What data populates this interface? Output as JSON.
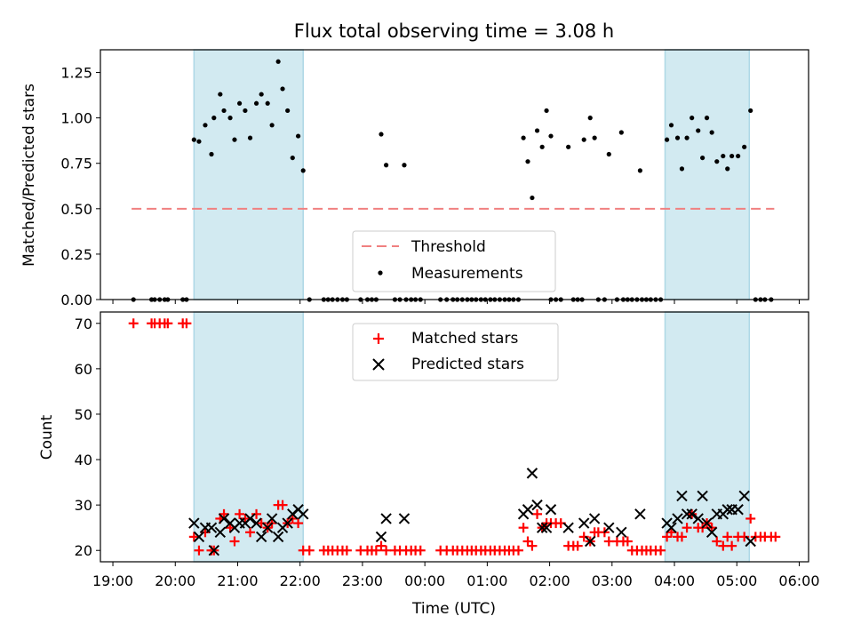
{
  "chart_data": {
    "type": "scatter",
    "title": "Flux total observing time = 3.08 h",
    "xlabel": "Time (UTC)",
    "x_ticks": [
      "19:00",
      "20:00",
      "21:00",
      "22:00",
      "23:00",
      "00:00",
      "01:00",
      "02:00",
      "03:00",
      "04:00",
      "05:00",
      "06:00"
    ],
    "x_range_hours": [
      18.8,
      30.15
    ],
    "shaded_intervals_hours": [
      [
        20.3,
        22.05
      ],
      [
        27.85,
        29.2
      ]
    ],
    "colors": {
      "shade": "#add8e6",
      "threshold": "#f08080",
      "matched": "#ff0000",
      "predicted": "#000000",
      "measure": "#000000"
    },
    "top": {
      "ylabel": "Matched/Predicted stars",
      "ylim": [
        0,
        1.375
      ],
      "y_ticks": [
        "0.00",
        "0.25",
        "0.50",
        "0.75",
        "1.00",
        "1.25"
      ],
      "threshold": {
        "value": 0.5,
        "x_range_hours": [
          19.3,
          29.6
        ]
      },
      "legend": {
        "position": "lower-center",
        "entries": [
          "Threshold",
          "Measurements"
        ]
      },
      "measurements": [
        [
          19.33,
          0
        ],
        [
          19.62,
          0
        ],
        [
          19.67,
          0
        ],
        [
          19.75,
          0
        ],
        [
          19.83,
          0
        ],
        [
          19.88,
          0
        ],
        [
          20.12,
          0
        ],
        [
          20.18,
          0
        ],
        [
          20.3,
          0.88
        ],
        [
          20.38,
          0.87
        ],
        [
          20.48,
          0.96
        ],
        [
          20.58,
          0.8
        ],
        [
          20.62,
          1.0
        ],
        [
          20.72,
          1.13
        ],
        [
          20.78,
          1.04
        ],
        [
          20.88,
          1.0
        ],
        [
          20.95,
          0.88
        ],
        [
          21.03,
          1.08
        ],
        [
          21.12,
          1.04
        ],
        [
          21.2,
          0.89
        ],
        [
          21.3,
          1.08
        ],
        [
          21.38,
          1.13
        ],
        [
          21.48,
          1.08
        ],
        [
          21.55,
          0.96
        ],
        [
          21.65,
          1.31
        ],
        [
          21.72,
          1.16
        ],
        [
          21.8,
          1.04
        ],
        [
          21.88,
          0.78
        ],
        [
          21.97,
          0.9
        ],
        [
          22.05,
          0.71
        ],
        [
          22.15,
          0
        ],
        [
          22.38,
          0
        ],
        [
          22.45,
          0
        ],
        [
          22.52,
          0
        ],
        [
          22.6,
          0
        ],
        [
          22.68,
          0
        ],
        [
          22.75,
          0
        ],
        [
          22.97,
          0
        ],
        [
          23.08,
          0
        ],
        [
          23.15,
          0
        ],
        [
          23.22,
          0
        ],
        [
          23.3,
          0.91
        ],
        [
          23.38,
          0.74
        ],
        [
          23.67,
          0.74
        ],
        [
          23.52,
          0
        ],
        [
          23.6,
          0
        ],
        [
          23.7,
          0
        ],
        [
          23.78,
          0
        ],
        [
          23.85,
          0
        ],
        [
          23.93,
          0
        ],
        [
          24.25,
          0
        ],
        [
          24.35,
          0
        ],
        [
          24.45,
          0
        ],
        [
          24.52,
          0
        ],
        [
          24.6,
          0
        ],
        [
          24.68,
          0
        ],
        [
          24.75,
          0
        ],
        [
          24.82,
          0
        ],
        [
          24.9,
          0
        ],
        [
          24.97,
          0
        ],
        [
          25.05,
          0
        ],
        [
          25.12,
          0
        ],
        [
          25.2,
          0
        ],
        [
          25.28,
          0
        ],
        [
          25.35,
          0
        ],
        [
          25.42,
          0
        ],
        [
          25.5,
          0
        ],
        [
          25.58,
          0.89
        ],
        [
          25.65,
          0.76
        ],
        [
          25.72,
          0.56
        ],
        [
          25.8,
          0.93
        ],
        [
          25.88,
          0.84
        ],
        [
          25.95,
          1.04
        ],
        [
          26.02,
          0.9
        ],
        [
          26.02,
          0
        ],
        [
          26.1,
          0
        ],
        [
          26.18,
          0
        ],
        [
          26.38,
          0
        ],
        [
          26.45,
          0
        ],
        [
          26.52,
          0
        ],
        [
          26.78,
          0
        ],
        [
          26.88,
          0
        ],
        [
          27.08,
          0
        ],
        [
          27.18,
          0
        ],
        [
          27.25,
          0
        ],
        [
          27.32,
          0
        ],
        [
          27.4,
          0
        ],
        [
          27.48,
          0
        ],
        [
          27.55,
          0
        ],
        [
          27.62,
          0
        ],
        [
          27.7,
          0
        ],
        [
          27.78,
          0
        ],
        [
          26.3,
          0.84
        ],
        [
          26.55,
          0.88
        ],
        [
          26.65,
          1.0
        ],
        [
          26.72,
          0.89
        ],
        [
          26.95,
          0.8
        ],
        [
          27.15,
          0.92
        ],
        [
          27.45,
          0.71
        ],
        [
          27.88,
          0.88
        ],
        [
          27.95,
          0.96
        ],
        [
          28.05,
          0.89
        ],
        [
          28.12,
          0.72
        ],
        [
          28.2,
          0.89
        ],
        [
          28.28,
          1.0
        ],
        [
          28.38,
          0.93
        ],
        [
          28.45,
          0.78
        ],
        [
          28.52,
          1.0
        ],
        [
          28.6,
          0.92
        ],
        [
          28.68,
          0.76
        ],
        [
          28.78,
          0.79
        ],
        [
          28.85,
          0.72
        ],
        [
          28.92,
          0.79
        ],
        [
          29.02,
          0.79
        ],
        [
          29.12,
          0.84
        ],
        [
          29.22,
          1.04
        ],
        [
          29.3,
          0
        ],
        [
          29.38,
          0
        ],
        [
          29.45,
          0
        ],
        [
          29.55,
          0
        ]
      ]
    },
    "bottom": {
      "ylabel": "Count",
      "ylim": [
        17.5,
        72.5
      ],
      "y_ticks": [
        "20",
        "30",
        "40",
        "50",
        "60",
        "70"
      ],
      "legend": {
        "position": "top-center",
        "entries": [
          "Matched stars",
          "Predicted stars"
        ]
      },
      "matched": [
        [
          19.33,
          70
        ],
        [
          19.62,
          70
        ],
        [
          19.67,
          70
        ],
        [
          19.75,
          70
        ],
        [
          19.83,
          70
        ],
        [
          19.88,
          70
        ],
        [
          20.12,
          70
        ],
        [
          20.18,
          70
        ],
        [
          20.3,
          23
        ],
        [
          20.38,
          20
        ],
        [
          20.48,
          24
        ],
        [
          20.58,
          20
        ],
        [
          20.62,
          20
        ],
        [
          20.72,
          27
        ],
        [
          20.78,
          28
        ],
        [
          20.88,
          25
        ],
        [
          20.95,
          22
        ],
        [
          21.03,
          28
        ],
        [
          21.12,
          27
        ],
        [
          21.2,
          24
        ],
        [
          21.3,
          28
        ],
        [
          21.38,
          26
        ],
        [
          21.48,
          25
        ],
        [
          21.55,
          26
        ],
        [
          21.65,
          30
        ],
        [
          21.72,
          30
        ],
        [
          21.8,
          26
        ],
        [
          21.88,
          27
        ],
        [
          21.97,
          26
        ],
        [
          22.05,
          20
        ],
        [
          22.15,
          20
        ],
        [
          22.38,
          20
        ],
        [
          22.45,
          20
        ],
        [
          22.52,
          20
        ],
        [
          22.6,
          20
        ],
        [
          22.68,
          20
        ],
        [
          22.75,
          20
        ],
        [
          22.97,
          20
        ],
        [
          23.08,
          20
        ],
        [
          23.15,
          20
        ],
        [
          23.22,
          20
        ],
        [
          23.3,
          21
        ],
        [
          23.38,
          20
        ],
        [
          23.52,
          20
        ],
        [
          23.6,
          20
        ],
        [
          23.7,
          20
        ],
        [
          23.78,
          20
        ],
        [
          23.85,
          20
        ],
        [
          23.93,
          20
        ],
        [
          24.25,
          20
        ],
        [
          24.35,
          20
        ],
        [
          24.45,
          20
        ],
        [
          24.52,
          20
        ],
        [
          24.6,
          20
        ],
        [
          24.68,
          20
        ],
        [
          24.75,
          20
        ],
        [
          24.82,
          20
        ],
        [
          24.9,
          20
        ],
        [
          24.97,
          20
        ],
        [
          25.05,
          20
        ],
        [
          25.12,
          20
        ],
        [
          25.2,
          20
        ],
        [
          25.28,
          20
        ],
        [
          25.35,
          20
        ],
        [
          25.42,
          20
        ],
        [
          25.5,
          20
        ],
        [
          25.58,
          25
        ],
        [
          25.65,
          22
        ],
        [
          25.72,
          21
        ],
        [
          25.8,
          28
        ],
        [
          25.88,
          25
        ],
        [
          25.95,
          26
        ],
        [
          26.02,
          26
        ],
        [
          26.1,
          26
        ],
        [
          26.18,
          26
        ],
        [
          26.3,
          21
        ],
        [
          26.38,
          21
        ],
        [
          26.45,
          21
        ],
        [
          26.55,
          23
        ],
        [
          26.65,
          22
        ],
        [
          26.72,
          24
        ],
        [
          26.78,
          24
        ],
        [
          26.88,
          24
        ],
        [
          26.95,
          22
        ],
        [
          27.08,
          22
        ],
        [
          27.18,
          22
        ],
        [
          27.25,
          22
        ],
        [
          27.32,
          20
        ],
        [
          27.4,
          20
        ],
        [
          27.48,
          20
        ],
        [
          27.55,
          20
        ],
        [
          27.62,
          20
        ],
        [
          27.7,
          20
        ],
        [
          27.78,
          20
        ],
        [
          27.88,
          23
        ],
        [
          27.95,
          24
        ],
        [
          28.05,
          23
        ],
        [
          28.12,
          23
        ],
        [
          28.2,
          25
        ],
        [
          28.28,
          28
        ],
        [
          28.38,
          25
        ],
        [
          28.45,
          25
        ],
        [
          28.52,
          26
        ],
        [
          28.6,
          25
        ],
        [
          28.68,
          22
        ],
        [
          28.78,
          21
        ],
        [
          28.85,
          23
        ],
        [
          28.92,
          21
        ],
        [
          29.02,
          23
        ],
        [
          29.12,
          23
        ],
        [
          29.22,
          27
        ],
        [
          29.3,
          23
        ],
        [
          29.38,
          23
        ],
        [
          29.45,
          23
        ],
        [
          29.55,
          23
        ],
        [
          29.62,
          23
        ]
      ],
      "predicted": [
        [
          20.3,
          26
        ],
        [
          20.38,
          23
        ],
        [
          20.48,
          25
        ],
        [
          20.58,
          25
        ],
        [
          20.62,
          20
        ],
        [
          20.72,
          24
        ],
        [
          20.78,
          27
        ],
        [
          20.88,
          26
        ],
        [
          20.95,
          25
        ],
        [
          21.03,
          26
        ],
        [
          21.12,
          26
        ],
        [
          21.2,
          27
        ],
        [
          21.3,
          26
        ],
        [
          21.38,
          23
        ],
        [
          21.48,
          25
        ],
        [
          21.55,
          27
        ],
        [
          21.65,
          23
        ],
        [
          21.72,
          25
        ],
        [
          21.8,
          26
        ],
        [
          21.88,
          28
        ],
        [
          21.97,
          29
        ],
        [
          22.05,
          28
        ],
        [
          23.3,
          23
        ],
        [
          23.38,
          27
        ],
        [
          23.67,
          27
        ],
        [
          25.58,
          28
        ],
        [
          25.65,
          29
        ],
        [
          25.72,
          37
        ],
        [
          25.8,
          30
        ],
        [
          25.88,
          25
        ],
        [
          25.95,
          25
        ],
        [
          26.02,
          29
        ],
        [
          26.3,
          25
        ],
        [
          26.55,
          26
        ],
        [
          26.65,
          22
        ],
        [
          26.72,
          27
        ],
        [
          26.95,
          25
        ],
        [
          27.15,
          24
        ],
        [
          27.45,
          28
        ],
        [
          27.88,
          26
        ],
        [
          27.95,
          25
        ],
        [
          28.05,
          27
        ],
        [
          28.12,
          32
        ],
        [
          28.2,
          28
        ],
        [
          28.28,
          28
        ],
        [
          28.38,
          27
        ],
        [
          28.45,
          32
        ],
        [
          28.52,
          26
        ],
        [
          28.6,
          24
        ],
        [
          28.68,
          28
        ],
        [
          28.78,
          28
        ],
        [
          28.85,
          29
        ],
        [
          28.92,
          29
        ],
        [
          29.02,
          29
        ],
        [
          29.12,
          32
        ],
        [
          29.22,
          22
        ]
      ]
    }
  }
}
